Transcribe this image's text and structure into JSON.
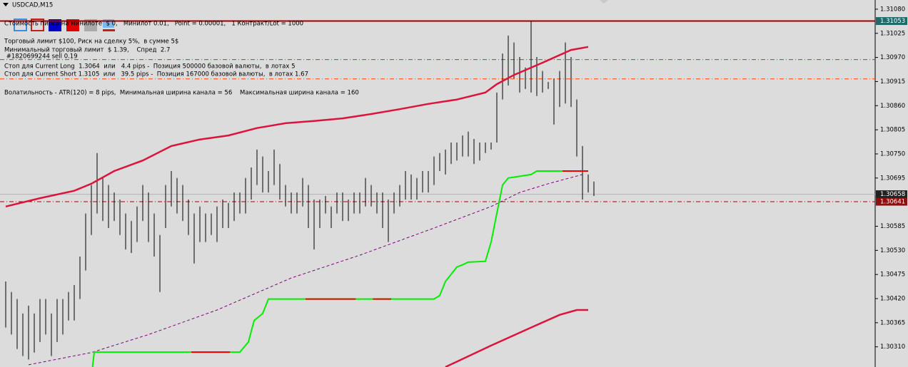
{
  "header": {
    "symbol": "USDCAD,M15"
  },
  "info_lines": [
    "Стоимость пипса на минилоте  $ 0,   Минилот 0.01,   Point = 0.00001,   1 Контракт/Lot = 1000",
    "Торговый лимит $100, Риск на сделку 5%,  в сумме 5$",
    "Минимальный торговый лимит  $ 1.39,    Спред  2.7",
    " #1820699244 sell 0.19",
    "Стоп для Current Long  1.3064  или   4.4 pips -  Позиция 500000 базовой валюты,  в лотах 5",
    "Стоп для Current Short 1.3105  или   39.5 pips -  Позиция 167000 базовой валюты,  в лотах 1.67",
    "Волатильность - ATR(120) = 8 pips,  Минимальная ширина канала = 56    Максимальная ширина канала = 160"
  ],
  "price_axis": {
    "ylim": [
      1.30264,
      1.31101
    ],
    "yticks": [
      {
        "value": 1.3108,
        "label": "1.31080"
      },
      1.31025,
      {
        "value": 1.3097,
        "label": "1.30970"
      },
      1.30915,
      {
        "value": 1.3086,
        "label": "1.30860"
      },
      1.30805,
      {
        "value": 1.3075,
        "label": "1.30750"
      },
      1.30695,
      1.30585,
      {
        "value": 1.3053,
        "label": "1.30530"
      },
      1.30475,
      {
        "value": 1.3042,
        "label": "1.30420"
      },
      1.30365,
      {
        "value": 1.3031,
        "label": "1.30310"
      }
    ]
  },
  "bars": {
    "color": "#000000",
    "high": [
      1.30459,
      1.30435,
      1.30419,
      1.30386,
      1.30404,
      1.30386,
      1.30419,
      1.30419,
      1.30386,
      1.30419,
      1.30419,
      1.30435,
      1.30451,
      1.30516,
      1.30614,
      1.30679,
      1.30752,
      1.30695,
      1.30679,
      1.30662,
      1.30646,
      1.30614,
      1.30597,
      1.3063,
      1.30679,
      1.30662,
      1.30614,
      1.30565,
      1.30679,
      1.30711,
      1.30695,
      1.30679,
      1.30646,
      1.30614,
      1.3063,
      1.30614,
      1.30614,
      1.3063,
      1.30646,
      1.30638,
      1.30662,
      1.30662,
      1.30695,
      1.30719,
      1.3076,
      1.30744,
      1.30711,
      1.3076,
      1.30727,
      1.30679,
      1.30662,
      1.30662,
      1.30695,
      1.30679,
      1.30646,
      1.30646,
      1.30654,
      1.3063,
      1.30662,
      1.30662,
      1.30646,
      1.30662,
      1.30662,
      1.30695,
      1.30679,
      1.30662,
      1.30662,
      1.30646,
      1.30662,
      1.30679,
      1.30711,
      1.30703,
      1.30695,
      1.30711,
      1.30711,
      1.30744,
      1.30752,
      1.3076,
      1.30776,
      1.30776,
      1.30792,
      1.30801,
      1.30784,
      1.30776,
      1.30776,
      1.30776,
      1.3089,
      1.30979,
      1.3102,
      1.31004,
      1.30971,
      1.30947,
      1.31052,
      1.30971,
      1.30939,
      1.30914,
      1.30922,
      1.30939,
      1.31004,
      1.30971,
      1.30874,
      1.30768,
      1.30703,
      1.30687
    ],
    "low": [
      1.30354,
      1.30338,
      1.30305,
      1.30289,
      1.30281,
      1.30297,
      1.30321,
      1.30338,
      1.30289,
      1.30321,
      1.30338,
      1.3037,
      1.3037,
      1.30419,
      1.30484,
      1.30565,
      1.30614,
      1.30597,
      1.30581,
      1.30597,
      1.30565,
      1.30532,
      1.30524,
      1.30549,
      1.30597,
      1.30549,
      1.30516,
      1.30435,
      1.30581,
      1.3063,
      1.30614,
      1.30597,
      1.30565,
      1.305,
      1.30549,
      1.30549,
      1.30565,
      1.30549,
      1.30581,
      1.30581,
      1.30597,
      1.30614,
      1.30614,
      1.30646,
      1.30679,
      1.30662,
      1.30662,
      1.30679,
      1.30646,
      1.3063,
      1.30614,
      1.30614,
      1.3063,
      1.30581,
      1.30532,
      1.30581,
      1.30614,
      1.30581,
      1.30614,
      1.30597,
      1.30597,
      1.30614,
      1.30614,
      1.3063,
      1.3063,
      1.30614,
      1.30581,
      1.30549,
      1.30614,
      1.3063,
      1.30646,
      1.30646,
      1.30646,
      1.30662,
      1.30662,
      1.30679,
      1.30711,
      1.30703,
      1.30727,
      1.30735,
      1.30744,
      1.30744,
      1.30727,
      1.30735,
      1.30752,
      1.3076,
      1.30776,
      1.30874,
      1.30906,
      1.30922,
      1.3089,
      1.30898,
      1.3089,
      1.30882,
      1.3089,
      1.30898,
      1.30817,
      1.30857,
      1.30865,
      1.30857,
      1.30744,
      1.30646,
      1.30662,
      1.30654
    ]
  },
  "lines": [
    {
      "color": "#dc143c",
      "width": 2.5,
      "dash": "solid",
      "x": [
        0,
        6,
        12,
        15,
        19,
        24,
        29,
        34,
        39,
        44,
        49,
        54,
        59,
        64,
        69,
        74,
        79,
        84,
        86,
        89,
        94,
        99,
        102
      ],
      "values": [
        1.3063,
        1.30649,
        1.30666,
        1.30682,
        1.30711,
        1.30735,
        1.30768,
        1.30783,
        1.30792,
        1.30809,
        1.3082,
        1.30825,
        1.30831,
        1.30841,
        1.30852,
        1.30864,
        1.30874,
        1.3089,
        1.30909,
        1.3093,
        1.30958,
        1.30987,
        1.30994
      ]
    },
    {
      "color": "#dc143c",
      "width": 2.5,
      "dash": "solid",
      "x": [
        77,
        85,
        92,
        97,
        100,
        102
      ],
      "values": [
        1.30264,
        1.30313,
        1.30354,
        1.30383,
        1.30394,
        1.30394
      ]
    },
    {
      "color": "#800080",
      "width": 1,
      "dash": "dash",
      "x": [
        4,
        15,
        25,
        37,
        50,
        62,
        75,
        85,
        90,
        95,
        101
      ],
      "values": [
        1.30269,
        1.30297,
        1.30338,
        1.30394,
        1.30467,
        1.30519,
        1.30581,
        1.3063,
        1.30662,
        1.30682,
        1.30703
      ]
    },
    {
      "color": "#00ee00",
      "width": 2,
      "dash": "solid",
      "x": [
        15.2,
        15.5,
        41,
        42.5,
        43.5,
        45,
        46,
        75,
        76,
        77,
        79,
        80,
        81,
        84,
        85,
        86,
        87,
        88,
        92,
        93,
        101
      ],
      "values": [
        1.30264,
        1.30298,
        1.30298,
        1.30321,
        1.3037,
        1.30386,
        1.30419,
        1.30419,
        1.30427,
        1.30459,
        1.30492,
        1.30497,
        1.30503,
        1.30505,
        1.30549,
        1.30614,
        1.30679,
        1.30695,
        1.30703,
        1.30711,
        1.30711
      ]
    },
    {
      "color": "#ee0000",
      "width": 2,
      "dash": "solid",
      "x": [
        32.5,
        39.3,
        null,
        52.5,
        61.3,
        null,
        64.3,
        67.5,
        null,
        97.5,
        102
      ],
      "values": [
        1.30298,
        1.30298,
        null,
        1.30419,
        1.30419,
        null,
        1.30419,
        1.30419,
        null,
        1.30711,
        1.30711
      ]
    }
  ],
  "levels": [
    {
      "value": 1.31053,
      "color": "#a00000",
      "width": 2,
      "dash": "solid"
    },
    {
      "value": 1.30965,
      "color": "#228b22",
      "width": 1,
      "dash": "dash-dot"
    },
    {
      "value": 1.30921,
      "color": "#ff4500",
      "width": 1,
      "dash": "dash-dot"
    },
    {
      "value": 1.30658,
      "color": "#b4b4b4",
      "width": 1,
      "dash": "solid"
    },
    {
      "value": 1.30641,
      "color": "#b00000",
      "width": 1,
      "dash": "dash-dot"
    }
  ],
  "tags": [
    {
      "value": 1.31053,
      "color": "#1f6a6a"
    },
    {
      "value": 1.30658,
      "color": "#222222"
    },
    {
      "value": 1.30641,
      "color": "#8b1010"
    }
  ]
}
